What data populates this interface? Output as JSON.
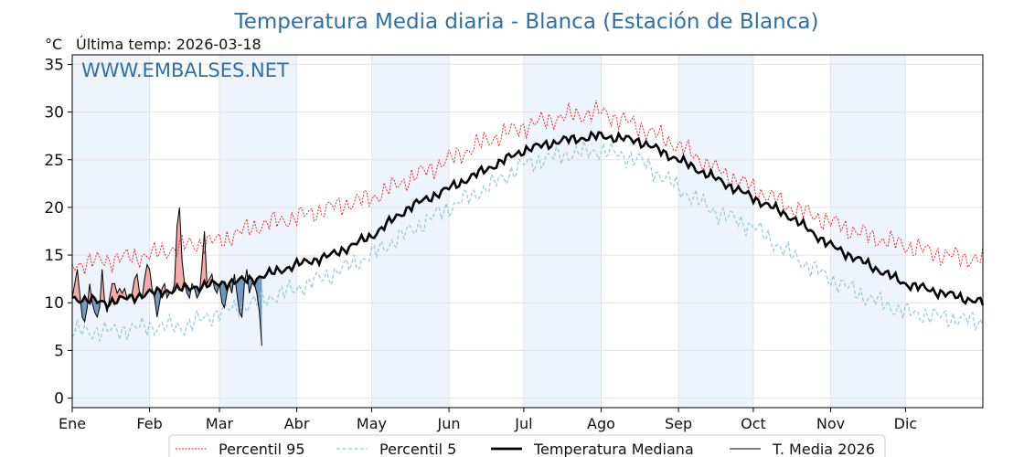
{
  "chart_data": {
    "type": "line",
    "title": "Temperatura Media diaria - Blanca (Estación de Blanca)",
    "unit": "°C",
    "last_temp": "Última temp: 2026-03-18",
    "watermark": "WWW.EMBALSES.NET",
    "ylim": [
      -1,
      36
    ],
    "yticks": [
      0,
      5,
      10,
      15,
      20,
      25,
      30,
      35
    ],
    "xlim": [
      1,
      366
    ],
    "months": [
      "Ene",
      "Feb",
      "Mar",
      "Abr",
      "May",
      "Jun",
      "Jul",
      "Ago",
      "Sep",
      "Oct",
      "Nov",
      "Dic"
    ],
    "month_start_days": [
      1,
      32,
      60,
      91,
      121,
      152,
      182,
      213,
      244,
      274,
      305,
      335
    ],
    "shaded_months": [
      0,
      2,
      4,
      6,
      8,
      10
    ],
    "grid": true,
    "legend_position": "bottom",
    "colors": {
      "p95": "#e8191b",
      "p5": "#8fc8dc",
      "median": "#000000",
      "current": "#000000",
      "above_fill": "#f2a8a8",
      "below_fill": "#6e97c0",
      "shade": "#eef4fb",
      "title": "#2f6fa7"
    },
    "anchors": {
      "p95": [
        [
          1,
          14
        ],
        [
          15,
          14.5
        ],
        [
          32,
          15
        ],
        [
          46,
          16
        ],
        [
          60,
          16.5
        ],
        [
          74,
          18
        ],
        [
          91,
          19
        ],
        [
          105,
          20
        ],
        [
          121,
          21
        ],
        [
          136,
          23
        ],
        [
          152,
          25
        ],
        [
          167,
          27
        ],
        [
          182,
          28.5
        ],
        [
          197,
          29.5
        ],
        [
          213,
          30
        ],
        [
          228,
          28.5
        ],
        [
          244,
          26.5
        ],
        [
          259,
          24
        ],
        [
          274,
          22
        ],
        [
          289,
          20
        ],
        [
          305,
          18.5
        ],
        [
          320,
          17
        ],
        [
          335,
          16
        ],
        [
          350,
          15
        ],
        [
          366,
          14.5
        ]
      ],
      "p5": [
        [
          1,
          7
        ],
        [
          15,
          7
        ],
        [
          32,
          7.5
        ],
        [
          46,
          7.5
        ],
        [
          60,
          9
        ],
        [
          74,
          10
        ],
        [
          91,
          11.5
        ],
        [
          105,
          13
        ],
        [
          121,
          15
        ],
        [
          136,
          17.5
        ],
        [
          152,
          20
        ],
        [
          167,
          22
        ],
        [
          182,
          24.5
        ],
        [
          197,
          25.5
        ],
        [
          213,
          26
        ],
        [
          228,
          25
        ],
        [
          244,
          22
        ],
        [
          259,
          19.5
        ],
        [
          274,
          18
        ],
        [
          289,
          15
        ],
        [
          305,
          12.5
        ],
        [
          320,
          10.5
        ],
        [
          335,
          9
        ],
        [
          350,
          8.5
        ],
        [
          366,
          8
        ]
      ],
      "median": [
        [
          1,
          10.5
        ],
        [
          15,
          10
        ],
        [
          32,
          11
        ],
        [
          46,
          11.5
        ],
        [
          60,
          12
        ],
        [
          74,
          12.5
        ],
        [
          91,
          14
        ],
        [
          105,
          15
        ],
        [
          121,
          17
        ],
        [
          136,
          20
        ],
        [
          152,
          22
        ],
        [
          167,
          24
        ],
        [
          182,
          26
        ],
        [
          197,
          27
        ],
        [
          213,
          27.5
        ],
        [
          228,
          27
        ],
        [
          244,
          25
        ],
        [
          259,
          23
        ],
        [
          274,
          21
        ],
        [
          289,
          19
        ],
        [
          305,
          16
        ],
        [
          320,
          14
        ],
        [
          335,
          12
        ],
        [
          350,
          11
        ],
        [
          366,
          10
        ]
      ]
    },
    "current_2026": {
      "name": "T. Media 2026",
      "days": [
        1,
        2,
        3,
        4,
        5,
        6,
        7,
        8,
        9,
        10,
        11,
        12,
        13,
        14,
        15,
        16,
        17,
        18,
        19,
        20,
        21,
        22,
        23,
        24,
        25,
        26,
        27,
        28,
        29,
        30,
        31,
        32,
        33,
        34,
        35,
        36,
        37,
        38,
        39,
        40,
        41,
        42,
        43,
        44,
        45,
        46,
        47,
        48,
        49,
        50,
        51,
        52,
        53,
        54,
        55,
        56,
        57,
        58,
        59,
        60,
        61,
        62,
        63,
        64,
        65,
        66,
        67,
        68,
        69,
        70,
        71,
        72,
        73,
        74,
        75,
        76,
        77
      ],
      "values": [
        10.5,
        12,
        13.5,
        11,
        8.5,
        8,
        9.5,
        12,
        10,
        9,
        8.5,
        9.5,
        13.5,
        10,
        9,
        10.5,
        12,
        12,
        11,
        11.5,
        11,
        11.5,
        10.5,
        10.5,
        11,
        12.5,
        13,
        11,
        10.5,
        12.5,
        14,
        13.5,
        11.5,
        10.5,
        8.5,
        10,
        11.5,
        12,
        10.5,
        11,
        11,
        12,
        18,
        20,
        14.5,
        12,
        11,
        10.5,
        12,
        11.5,
        10.5,
        11,
        14,
        17.5,
        12,
        12.5,
        13,
        11.5,
        11,
        12,
        10,
        9.5,
        11,
        12,
        11,
        13,
        11,
        9,
        8.5,
        12,
        13.5,
        11,
        12,
        12,
        11,
        9,
        5.5
      ]
    },
    "legend": [
      {
        "key": "p95",
        "label": "Percentil 95"
      },
      {
        "key": "p5",
        "label": "Percentil 5"
      },
      {
        "key": "median",
        "label": "Temperatura Mediana"
      },
      {
        "key": "current",
        "label": "T. Media 2026"
      }
    ]
  }
}
